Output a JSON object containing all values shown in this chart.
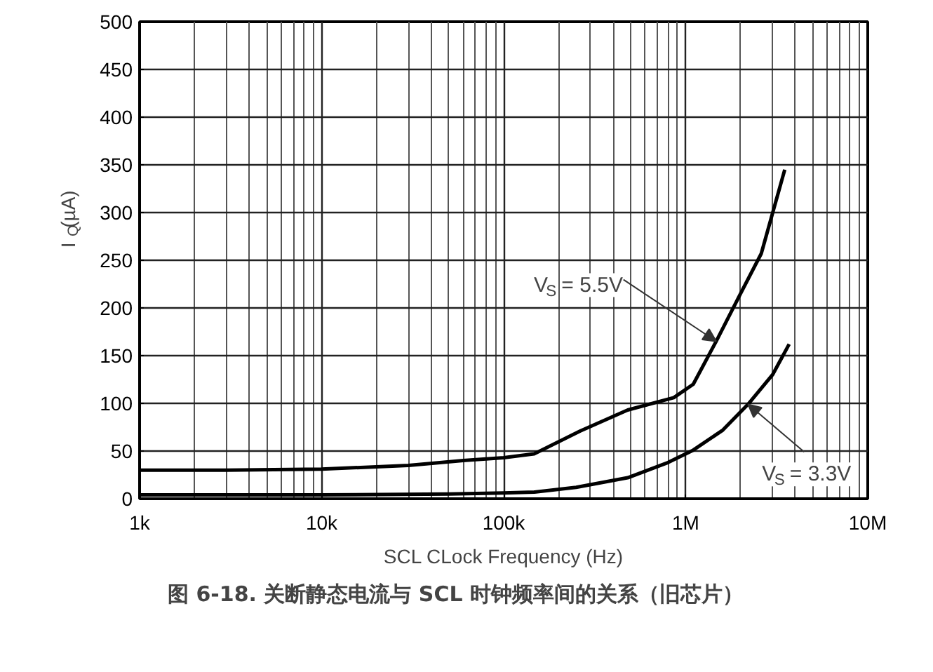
{
  "chart_data": {
    "type": "line",
    "title": "图 6-18. 关断静态电流与 SCL 时钟频率间的关系（旧芯片）",
    "xlabel": "SCL CLock Frequency (Hz)",
    "ylabel": "I$_{Q}$(µA)",
    "log": "x",
    "grid": true,
    "line_style": "solid",
    "marker": "none",
    "xlim": [
      1000,
      10000000
    ],
    "xticks": [
      {
        "value": 1000,
        "label": "1k"
      },
      {
        "value": 10000,
        "label": "10k"
      },
      {
        "value": 100000,
        "label": "100k"
      },
      {
        "value": 1000000,
        "label": "1M"
      },
      {
        "value": 10000000,
        "label": "10M"
      }
    ],
    "ylim": [
      0,
      500
    ],
    "yticks": [
      0,
      50,
      100,
      150,
      200,
      250,
      300,
      350,
      400,
      450,
      500
    ],
    "series": [
      {
        "color": "#000000",
        "x": [
          1000,
          3000,
          10000,
          30000,
          60000,
          100000,
          147000,
          263000,
          480000,
          860000,
          1100000,
          1470000,
          2000000,
          2600000,
          3500000
        ],
        "values": [
          30,
          30,
          31,
          35,
          40,
          43,
          47,
          71,
          93,
          106,
          120,
          165,
          215,
          257,
          345
        ]
      },
      {
        "color": "#000000",
        "x": [
          1000,
          10000,
          50000,
          100000,
          147000,
          250000,
          480000,
          800000,
          1100000,
          1600000,
          2200000,
          3000000,
          3700000
        ],
        "values": [
          4,
          4,
          5,
          6,
          7,
          12,
          22,
          38,
          51,
          72,
          99,
          130,
          162
        ]
      }
    ],
    "annotations": [
      {
        "text": "V$_{S}$ = 5.5V",
        "x": 1470000,
        "y": 165
      },
      {
        "text": "V$_{S}$ = 3.3V",
        "x": 2200000,
        "y": 99
      }
    ]
  }
}
